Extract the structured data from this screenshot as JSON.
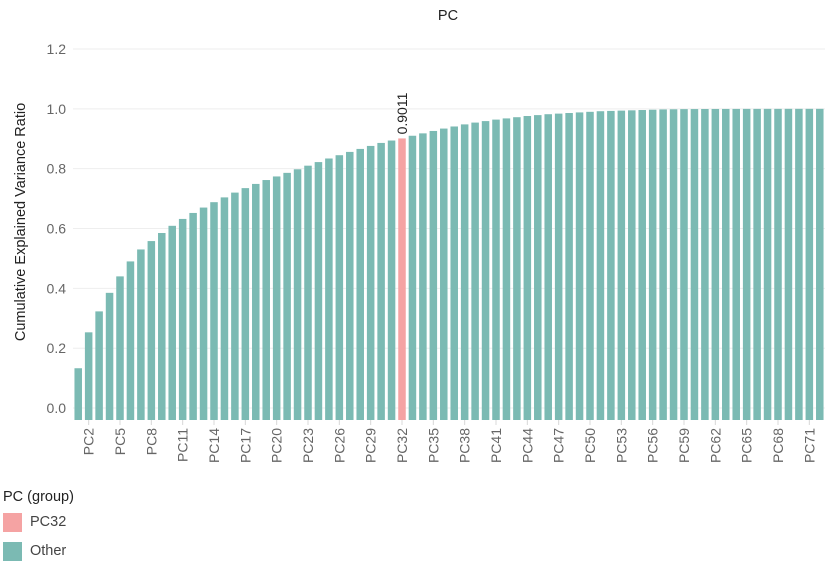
{
  "chart_data": {
    "type": "bar",
    "title": "PC",
    "xlabel": "",
    "ylabel": "Cumulative Explained Variance Ratio",
    "ylim": [
      -0.04,
      1.22
    ],
    "yticks": [
      "0.0",
      "0.2",
      "0.4",
      "0.6",
      "0.8",
      "1.0",
      "1.2"
    ],
    "ytick_values": [
      0,
      0.2,
      0.4,
      0.6,
      0.8,
      1.0,
      1.2
    ],
    "categories": [
      "PC1",
      "PC2",
      "PC3",
      "PC4",
      "PC5",
      "PC6",
      "PC7",
      "PC8",
      "PC9",
      "PC10",
      "PC11",
      "PC12",
      "PC13",
      "PC14",
      "PC15",
      "PC16",
      "PC17",
      "PC18",
      "PC19",
      "PC20",
      "PC21",
      "PC22",
      "PC23",
      "PC24",
      "PC25",
      "PC26",
      "PC27",
      "PC28",
      "PC29",
      "PC30",
      "PC31",
      "PC32",
      "PC33",
      "PC34",
      "PC35",
      "PC36",
      "PC37",
      "PC38",
      "PC39",
      "PC40",
      "PC41",
      "PC42",
      "PC43",
      "PC44",
      "PC45",
      "PC46",
      "PC47",
      "PC48",
      "PC49",
      "PC50",
      "PC51",
      "PC52",
      "PC53",
      "PC54",
      "PC55",
      "PC56",
      "PC57",
      "PC58",
      "PC59",
      "PC60",
      "PC61",
      "PC62",
      "PC63",
      "PC64",
      "PC65",
      "PC66",
      "PC67",
      "PC68",
      "PC69",
      "PC70",
      "PC71",
      "PC72"
    ],
    "visible_tick_labels": [
      "PC2",
      "PC5",
      "PC8",
      "PC11",
      "PC14",
      "PC17",
      "PC20",
      "PC23",
      "PC26",
      "PC29",
      "PC32",
      "PC35",
      "PC38",
      "PC41",
      "PC44",
      "PC47",
      "PC50",
      "PC53",
      "PC56",
      "PC59",
      "PC62",
      "PC65",
      "PC68",
      "PC71"
    ],
    "values": [
      0.133,
      0.253,
      0.323,
      0.385,
      0.44,
      0.49,
      0.53,
      0.558,
      0.585,
      0.609,
      0.632,
      0.652,
      0.67,
      0.688,
      0.704,
      0.72,
      0.735,
      0.749,
      0.762,
      0.774,
      0.786,
      0.798,
      0.81,
      0.822,
      0.834,
      0.845,
      0.856,
      0.866,
      0.876,
      0.886,
      0.894,
      0.9011,
      0.91,
      0.918,
      0.926,
      0.934,
      0.941,
      0.948,
      0.954,
      0.959,
      0.964,
      0.968,
      0.972,
      0.976,
      0.979,
      0.982,
      0.984,
      0.986,
      0.988,
      0.99,
      0.992,
      0.993,
      0.994,
      0.995,
      0.996,
      0.997,
      0.998,
      0.9985,
      0.999,
      0.9992,
      0.9994,
      0.9995,
      0.9996,
      0.9997,
      0.9998,
      0.9998,
      0.9999,
      0.9999,
      1.0,
      1.0,
      1.0,
      1.0
    ],
    "groups": [
      "Other",
      "Other",
      "Other",
      "Other",
      "Other",
      "Other",
      "Other",
      "Other",
      "Other",
      "Other",
      "Other",
      "Other",
      "Other",
      "Other",
      "Other",
      "Other",
      "Other",
      "Other",
      "Other",
      "Other",
      "Other",
      "Other",
      "Other",
      "Other",
      "Other",
      "Other",
      "Other",
      "Other",
      "Other",
      "Other",
      "Other",
      "PC32",
      "Other",
      "Other",
      "Other",
      "Other",
      "Other",
      "Other",
      "Other",
      "Other",
      "Other",
      "Other",
      "Other",
      "Other",
      "Other",
      "Other",
      "Other",
      "Other",
      "Other",
      "Other",
      "Other",
      "Other",
      "Other",
      "Other",
      "Other",
      "Other",
      "Other",
      "Other",
      "Other",
      "Other",
      "Other",
      "Other",
      "Other",
      "Other",
      "Other",
      "Other",
      "Other",
      "Other",
      "Other",
      "Other",
      "Other",
      "Other"
    ],
    "annotations": [
      {
        "category": "PC32",
        "text": "0.9011"
      }
    ],
    "legend": {
      "title": "PC (group)",
      "position": "bottom-left",
      "items": [
        {
          "name": "PC32",
          "color": "#f5a3a3"
        },
        {
          "name": "Other",
          "color": "#7bbab3"
        }
      ]
    },
    "grid": true
  },
  "colors": {
    "grid": "#eeeeee",
    "tick_line": "#d8d8d8"
  }
}
